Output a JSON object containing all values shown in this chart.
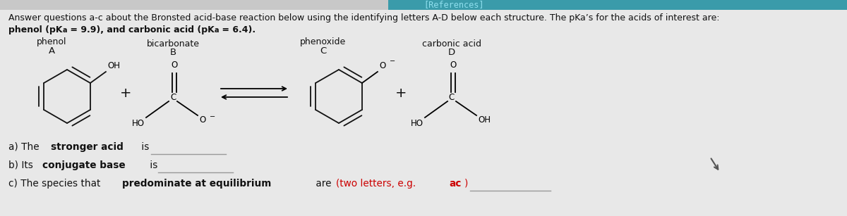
{
  "bg_color": "#c8c8c8",
  "title_bar_color": "#3a9baa",
  "title_bar_text": "[References]",
  "header_line1": "Answer questions a-c about the Bronsted acid-base reaction below using the identifying letters A-D below each structure. The pKa’s for the acids of interest are:",
  "header_line2_phenol": "phenol (pK",
  "header_line2_a1": "a",
  "header_line2_mid": " = 9.9), and ",
  "header_line2_carbonic": "carbonic acid (pK",
  "header_line2_a2": "a",
  "header_line2_end": " = 6.4).",
  "text_color": "#111111",
  "red_color": "#cc0000",
  "struct_color": "#111111",
  "underline_color": "#999999",
  "font_size_header1": 9.0,
  "font_size_header2": 10.5,
  "font_size_q": 9.8,
  "font_size_struct": 8.5,
  "font_size_label": 9.5,
  "font_size_sublabel": 9.0
}
